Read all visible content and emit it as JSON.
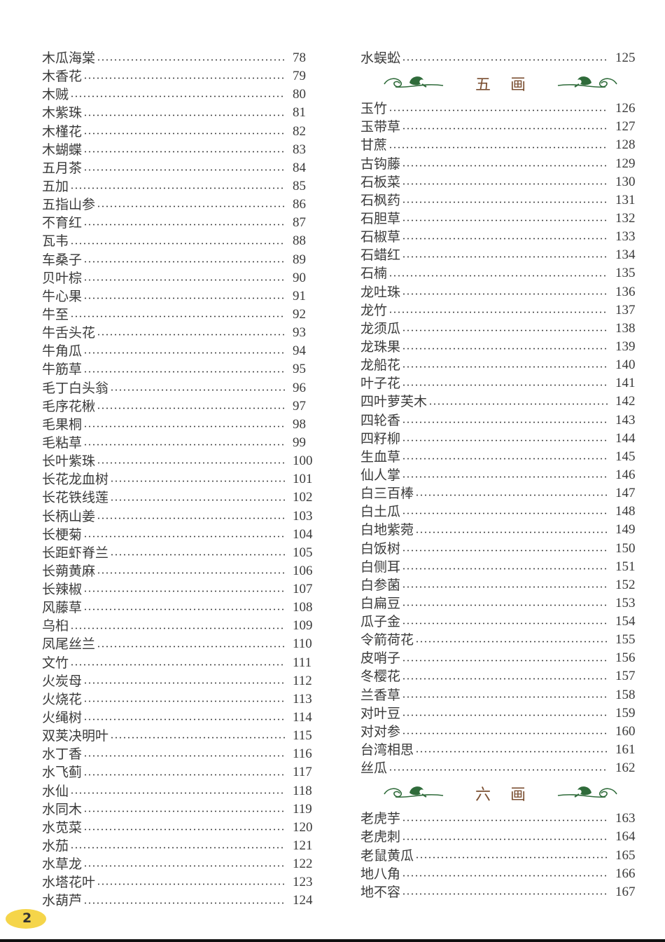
{
  "page_number": "2",
  "left_column": {
    "entries": [
      {
        "name": "木瓜海棠",
        "page": "78"
      },
      {
        "name": "木香花",
        "page": "79"
      },
      {
        "name": "木贼",
        "page": "80"
      },
      {
        "name": "木紫珠",
        "page": "81"
      },
      {
        "name": "木槿花",
        "page": "82"
      },
      {
        "name": "木蝴蝶",
        "page": "83"
      },
      {
        "name": "五月茶",
        "page": "84"
      },
      {
        "name": "五加",
        "page": "85"
      },
      {
        "name": "五指山参",
        "page": "86"
      },
      {
        "name": "不育红",
        "page": "87"
      },
      {
        "name": "瓦韦",
        "page": "88"
      },
      {
        "name": "车桑子",
        "page": "89"
      },
      {
        "name": "贝叶棕",
        "page": "90"
      },
      {
        "name": "牛心果",
        "page": "91"
      },
      {
        "name": "牛至",
        "page": "92"
      },
      {
        "name": "牛舌头花",
        "page": "93"
      },
      {
        "name": "牛角瓜",
        "page": "94"
      },
      {
        "name": "牛筋草",
        "page": "95"
      },
      {
        "name": "毛丁白头翁",
        "page": "96"
      },
      {
        "name": "毛序花楸",
        "page": "97"
      },
      {
        "name": "毛果桐",
        "page": "98"
      },
      {
        "name": "毛粘草",
        "page": "99"
      },
      {
        "name": "长叶紫珠",
        "page": "100"
      },
      {
        "name": "长花龙血树",
        "page": "101"
      },
      {
        "name": "长花铁线莲",
        "page": "102"
      },
      {
        "name": "长柄山姜",
        "page": "103"
      },
      {
        "name": "长梗菊",
        "page": "104"
      },
      {
        "name": "长距虾脊兰",
        "page": "105"
      },
      {
        "name": "长蒴黄麻",
        "page": "106"
      },
      {
        "name": "长辣椒",
        "page": "107"
      },
      {
        "name": "风藤草",
        "page": "108"
      },
      {
        "name": "乌桕",
        "page": "109"
      },
      {
        "name": "凤尾丝兰",
        "page": "110"
      },
      {
        "name": "文竹",
        "page": "111"
      },
      {
        "name": "火炭母",
        "page": "112"
      },
      {
        "name": "火烧花",
        "page": "113"
      },
      {
        "name": "火绳树",
        "page": "114"
      },
      {
        "name": "双荚决明叶",
        "page": "115"
      },
      {
        "name": "水丁香",
        "page": "116"
      },
      {
        "name": "水飞蓟",
        "page": "117"
      },
      {
        "name": "水仙",
        "page": "118"
      },
      {
        "name": "水同木",
        "page": "119"
      },
      {
        "name": "水苋菜",
        "page": "120"
      },
      {
        "name": "水茄",
        "page": "121"
      },
      {
        "name": "水草龙",
        "page": "122"
      },
      {
        "name": "水塔花叶",
        "page": "123"
      },
      {
        "name": "水葫芦",
        "page": "124"
      }
    ]
  },
  "right_column": {
    "groups": [
      {
        "heading": "",
        "entries": [
          {
            "name": "水蜈蚣",
            "page": "125"
          }
        ]
      },
      {
        "heading": "五画",
        "entries": [
          {
            "name": "玉竹",
            "page": "126"
          },
          {
            "name": "玉带草",
            "page": "127"
          },
          {
            "name": "甘蔗",
            "page": "128"
          },
          {
            "name": "古钩藤",
            "page": "129"
          },
          {
            "name": "石板菜",
            "page": "130"
          },
          {
            "name": "石枫药",
            "page": "131"
          },
          {
            "name": "石胆草",
            "page": "132"
          },
          {
            "name": "石椒草",
            "page": "133"
          },
          {
            "name": "石蜡红",
            "page": "134"
          },
          {
            "name": "石楠",
            "page": "135"
          },
          {
            "name": "龙吐珠",
            "page": "136"
          },
          {
            "name": "龙竹",
            "page": "137"
          },
          {
            "name": "龙须瓜",
            "page": "138"
          },
          {
            "name": "龙珠果",
            "page": "139"
          },
          {
            "name": "龙船花",
            "page": "140"
          },
          {
            "name": "叶子花",
            "page": "141"
          },
          {
            "name": "四叶萝芙木",
            "page": "142"
          },
          {
            "name": "四轮香",
            "page": "143"
          },
          {
            "name": "四籽柳",
            "page": "144"
          },
          {
            "name": "生血草",
            "page": "145"
          },
          {
            "name": "仙人掌",
            "page": "146"
          },
          {
            "name": "白三百棒",
            "page": "147"
          },
          {
            "name": "白土瓜",
            "page": "148"
          },
          {
            "name": "白地紫菀",
            "page": "149"
          },
          {
            "name": "白饭树",
            "page": "150"
          },
          {
            "name": "白侧耳",
            "page": "151"
          },
          {
            "name": "白参菌",
            "page": "152"
          },
          {
            "name": "白扁豆",
            "page": "153"
          },
          {
            "name": "瓜子金",
            "page": "154"
          },
          {
            "name": "令箭荷花",
            "page": "155"
          },
          {
            "name": "皮哨子",
            "page": "156"
          },
          {
            "name": "冬樱花",
            "page": "157"
          },
          {
            "name": "兰香草",
            "page": "158"
          },
          {
            "name": "对叶豆",
            "page": "159"
          },
          {
            "name": "对对参",
            "page": "160"
          },
          {
            "name": "台湾相思",
            "page": "161"
          },
          {
            "name": "丝瓜",
            "page": "162"
          }
        ]
      },
      {
        "heading": "六画",
        "entries": [
          {
            "name": "老虎芋",
            "page": "163"
          },
          {
            "name": "老虎刺",
            "page": "164"
          },
          {
            "name": "老鼠黄瓜",
            "page": "165"
          },
          {
            "name": "地八角",
            "page": "166"
          },
          {
            "name": "地不容",
            "page": "167"
          }
        ]
      }
    ]
  },
  "colors": {
    "heading": "#7a4e30",
    "ornament": "#2f6b3a",
    "badge": "#f5d54a"
  },
  "icons": {
    "ornament": "vine-leaf-ornament-icon"
  }
}
